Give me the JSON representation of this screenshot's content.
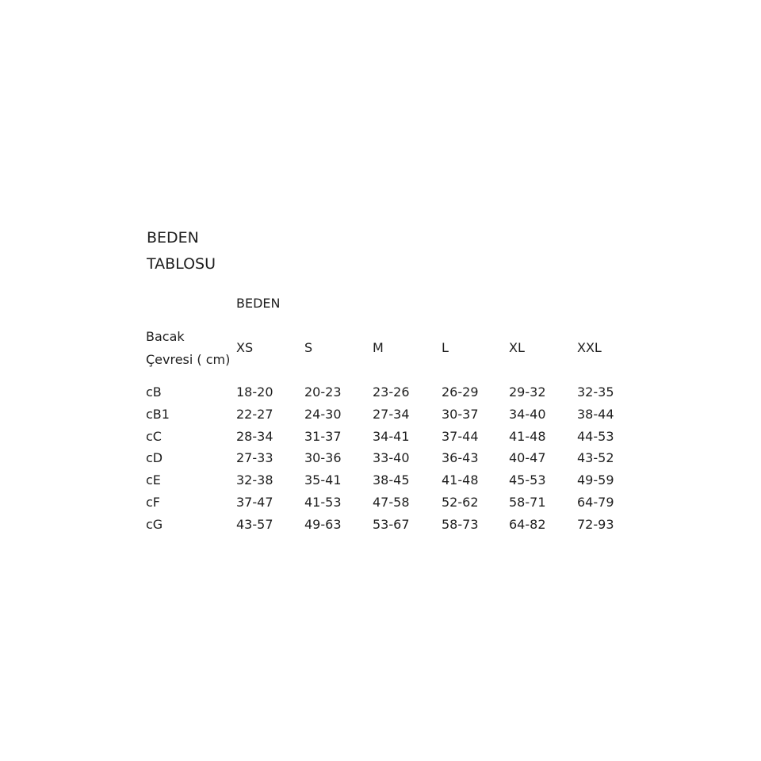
{
  "title": {
    "line1": "BEDEN",
    "line2": "TABLOSU"
  },
  "table": {
    "group_header": "BEDEN",
    "row_header": {
      "line1": "Bacak",
      "line2": "Çevresi ( cm)"
    },
    "columns": [
      "XS",
      "S",
      "M",
      "L",
      "XL",
      "XXL"
    ],
    "rows": [
      {
        "label": "cB",
        "values": [
          "18-20",
          "20-23",
          "23-26",
          "26-29",
          "29-32",
          "32-35"
        ]
      },
      {
        "label": "cB1",
        "values": [
          "22-27",
          "24-30",
          "27-34",
          "30-37",
          "34-40",
          "38-44"
        ]
      },
      {
        "label": "cC",
        "values": [
          "28-34",
          "31-37",
          "34-41",
          "37-44",
          "41-48",
          "44-53"
        ]
      },
      {
        "label": "cD",
        "values": [
          "27-33",
          "30-36",
          "33-40",
          "36-43",
          "40-47",
          "43-52"
        ]
      },
      {
        "label": "cE",
        "values": [
          "32-38",
          "35-41",
          "38-45",
          "41-48",
          "45-53",
          "49-59"
        ]
      },
      {
        "label": "cF",
        "values": [
          "37-47",
          "41-53",
          "47-58",
          "52-62",
          "58-71",
          "64-79"
        ]
      },
      {
        "label": "cG",
        "values": [
          "43-57",
          "49-63",
          "53-67",
          "58-73",
          "64-82",
          "72-93"
        ]
      }
    ]
  }
}
